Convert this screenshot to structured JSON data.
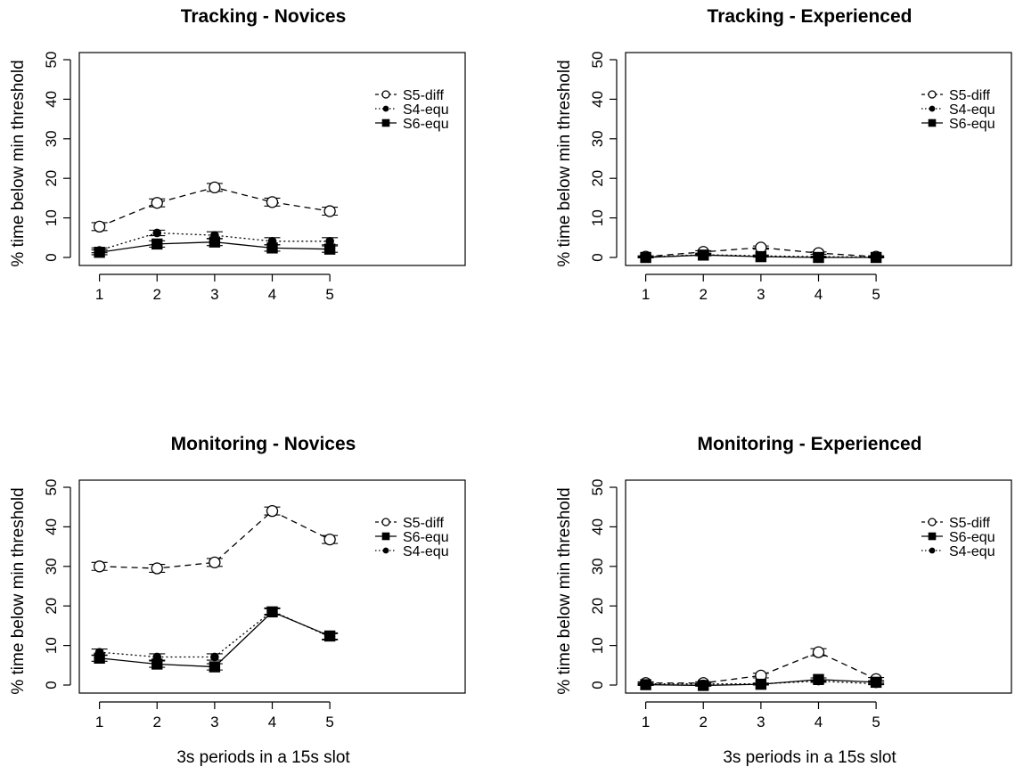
{
  "figure": {
    "ylabel": "% time below min threshold"
  },
  "chart_data": [
    {
      "type": "line",
      "title": "Tracking - Novices",
      "xlabel": "",
      "ylabel": "% time below min threshold",
      "x": [
        1,
        2,
        3,
        4,
        5
      ],
      "xlim": [
        0.65,
        7.35
      ],
      "ylim": [
        0,
        50
      ],
      "yticks": [
        0,
        10,
        20,
        30,
        40,
        50
      ],
      "legend": "top-right",
      "grid": false,
      "series": [
        {
          "name": "S5-diff",
          "style": "dashed-open-circle",
          "values": [
            7.8,
            13.8,
            17.7,
            14.0,
            11.7
          ],
          "err": [
            1.0,
            1.0,
            1.0,
            1.0,
            1.0
          ]
        },
        {
          "name": "S4-equ",
          "style": "dotted-filled-circle",
          "values": [
            1.8,
            6.2,
            5.6,
            4.1,
            4.1
          ],
          "err": [
            0.6,
            0.7,
            0.9,
            0.9,
            0.9
          ]
        },
        {
          "name": "S6-equ",
          "style": "solid-filled-square",
          "values": [
            1.3,
            3.4,
            3.9,
            2.4,
            2.1
          ],
          "err": [
            0.6,
            0.8,
            0.9,
            0.8,
            0.8
          ]
        }
      ]
    },
    {
      "type": "line",
      "title": "Tracking - Experienced",
      "xlabel": "",
      "ylabel": "% time below min threshold",
      "x": [
        1,
        2,
        3,
        4,
        5
      ],
      "xlim": [
        0.65,
        7.35
      ],
      "ylim": [
        0,
        50
      ],
      "yticks": [
        0,
        10,
        20,
        30,
        40,
        50
      ],
      "legend": "top-right",
      "grid": false,
      "series": [
        {
          "name": "S5-diff",
          "style": "dashed-open-circle",
          "values": [
            0.2,
            1.4,
            2.5,
            1.1,
            0.2
          ],
          "err": [
            0.2,
            0.3,
            0.4,
            0.3,
            0.2
          ]
        },
        {
          "name": "S4-equ",
          "style": "dotted-filled-circle",
          "values": [
            0.1,
            0.7,
            0.4,
            0.2,
            0.1
          ],
          "err": [
            0.1,
            0.2,
            0.2,
            0.1,
            0.1
          ]
        },
        {
          "name": "S6-equ",
          "style": "solid-filled-square",
          "values": [
            0.0,
            0.6,
            0.2,
            0.0,
            0.0
          ],
          "err": [
            0.1,
            0.2,
            0.1,
            0.1,
            0.1
          ]
        }
      ]
    },
    {
      "type": "line",
      "title": "Monitoring - Novices",
      "xlabel": "3s periods in a 15s slot",
      "ylabel": "% time below min threshold",
      "x": [
        1,
        2,
        3,
        4,
        5
      ],
      "xlim": [
        0.65,
        7.35
      ],
      "ylim": [
        0,
        50
      ],
      "yticks": [
        0,
        10,
        20,
        30,
        40,
        50
      ],
      "legend": "top-right",
      "grid": false,
      "series": [
        {
          "name": "S5-diff",
          "style": "dashed-open-circle",
          "values": [
            30.0,
            29.5,
            31.0,
            44.0,
            36.8
          ],
          "err": [
            1.0,
            1.0,
            1.0,
            1.0,
            1.0
          ]
        },
        {
          "name": "S6-equ",
          "style": "solid-filled-square",
          "values": [
            6.8,
            5.3,
            4.6,
            18.5,
            12.4
          ],
          "err": [
            0.8,
            0.8,
            0.8,
            0.8,
            0.8
          ]
        },
        {
          "name": "S4-equ",
          "style": "dotted-filled-circle",
          "values": [
            8.3,
            7.1,
            7.1,
            18.7,
            12.2
          ],
          "err": [
            0.8,
            0.8,
            0.8,
            0.8,
            0.8
          ]
        }
      ]
    },
    {
      "type": "line",
      "title": "Monitoring - Experienced",
      "xlabel": "3s periods in a 15s slot",
      "ylabel": "% time below min threshold",
      "x": [
        1,
        2,
        3,
        4,
        5
      ],
      "xlim": [
        0.65,
        7.35
      ],
      "ylim": [
        0,
        50
      ],
      "yticks": [
        0,
        10,
        20,
        30,
        40,
        50
      ],
      "legend": "top-right",
      "grid": false,
      "series": [
        {
          "name": "S5-diff",
          "style": "dashed-open-circle",
          "values": [
            0.5,
            0.5,
            2.4,
            8.3,
            1.5
          ],
          "err": [
            0.3,
            0.3,
            0.6,
            0.9,
            0.4
          ]
        },
        {
          "name": "S6-equ",
          "style": "solid-filled-square",
          "values": [
            0.1,
            -0.1,
            0.2,
            1.4,
            0.7
          ],
          "err": [
            0.2,
            0.2,
            0.2,
            0.4,
            0.3
          ]
        },
        {
          "name": "S4-equ",
          "style": "dotted-filled-circle",
          "values": [
            0.3,
            0.3,
            0.3,
            1.0,
            0.3
          ],
          "err": [
            0.2,
            0.2,
            0.2,
            0.3,
            0.2
          ]
        }
      ]
    }
  ]
}
